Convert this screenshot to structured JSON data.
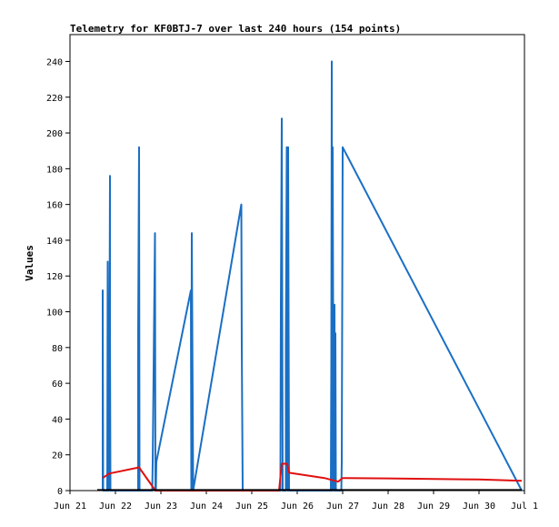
{
  "chart_data": {
    "type": "line",
    "title": "Telemetry for KF0BTJ-7 over last 240 hours (154 points)",
    "xlabel": "",
    "ylabel": "Values",
    "x_tick_labels": [
      "Jun 21",
      "Jun 22",
      "Jun 23",
      "Jun 24",
      "Jun 25",
      "Jun 26",
      "Jun 27",
      "Jun 28",
      "Jun 29",
      "Jun 30",
      "Jul 1"
    ],
    "xlim_days": [
      0,
      10
    ],
    "ylim": [
      0,
      255
    ],
    "y_ticks": [
      0,
      20,
      40,
      60,
      80,
      100,
      120,
      140,
      160,
      180,
      200,
      220,
      240
    ],
    "grid": false,
    "legend": "none",
    "series": [
      {
        "color": "#1a6fc4",
        "points": [
          [
            0.72,
            0
          ],
          [
            0.72,
            112
          ],
          [
            0.73,
            0
          ],
          [
            0.82,
            0
          ],
          [
            0.83,
            128
          ],
          [
            0.84,
            0
          ],
          [
            0.85,
            64
          ],
          [
            0.86,
            0
          ],
          [
            0.88,
            176
          ],
          [
            0.88,
            88
          ],
          [
            0.89,
            0
          ],
          [
            1.5,
            0
          ],
          [
            1.5,
            88
          ],
          [
            1.52,
            192
          ],
          [
            1.53,
            0
          ],
          [
            1.81,
            0
          ],
          [
            1.82,
            16
          ],
          [
            1.87,
            144
          ],
          [
            1.88,
            0
          ],
          [
            1.89,
            0
          ],
          [
            1.9,
            16
          ],
          [
            2.66,
            112
          ],
          [
            2.67,
            0
          ],
          [
            2.68,
            144
          ],
          [
            2.71,
            0
          ],
          [
            3.77,
            160
          ],
          [
            3.78,
            80
          ],
          [
            3.8,
            0
          ],
          [
            4.63,
            0
          ],
          [
            4.64,
            104
          ],
          [
            4.66,
            208
          ],
          [
            4.68,
            0
          ],
          [
            4.75,
            0
          ],
          [
            4.75,
            80
          ],
          [
            4.77,
            192
          ],
          [
            4.79,
            0
          ],
          [
            4.8,
            192
          ],
          [
            4.82,
            0
          ],
          [
            5.74,
            0
          ],
          [
            5.75,
            72
          ],
          [
            5.76,
            240
          ],
          [
            5.77,
            0
          ],
          [
            5.78,
            192
          ],
          [
            5.8,
            0
          ],
          [
            5.82,
            104
          ],
          [
            5.83,
            0
          ],
          [
            5.84,
            88
          ],
          [
            5.85,
            0
          ],
          [
            5.97,
            0
          ],
          [
            5.98,
            16
          ],
          [
            6.0,
            192
          ],
          [
            9.94,
            0
          ]
        ]
      },
      {
        "color": "#e01010",
        "points": [
          [
            0.72,
            7
          ],
          [
            0.86,
            9.5
          ],
          [
            1.52,
            13
          ],
          [
            1.88,
            0
          ],
          [
            4.6,
            0
          ],
          [
            4.66,
            15
          ],
          [
            4.78,
            15
          ],
          [
            4.82,
            10
          ],
          [
            5.6,
            7
          ],
          [
            5.9,
            5
          ],
          [
            6.0,
            7
          ],
          [
            7.0,
            6.8
          ],
          [
            9.0,
            6.2
          ],
          [
            9.94,
            5.5
          ]
        ]
      },
      {
        "color": "#000000",
        "points": [
          [
            0.6,
            0.3
          ],
          [
            9.94,
            0.3
          ]
        ]
      }
    ]
  }
}
